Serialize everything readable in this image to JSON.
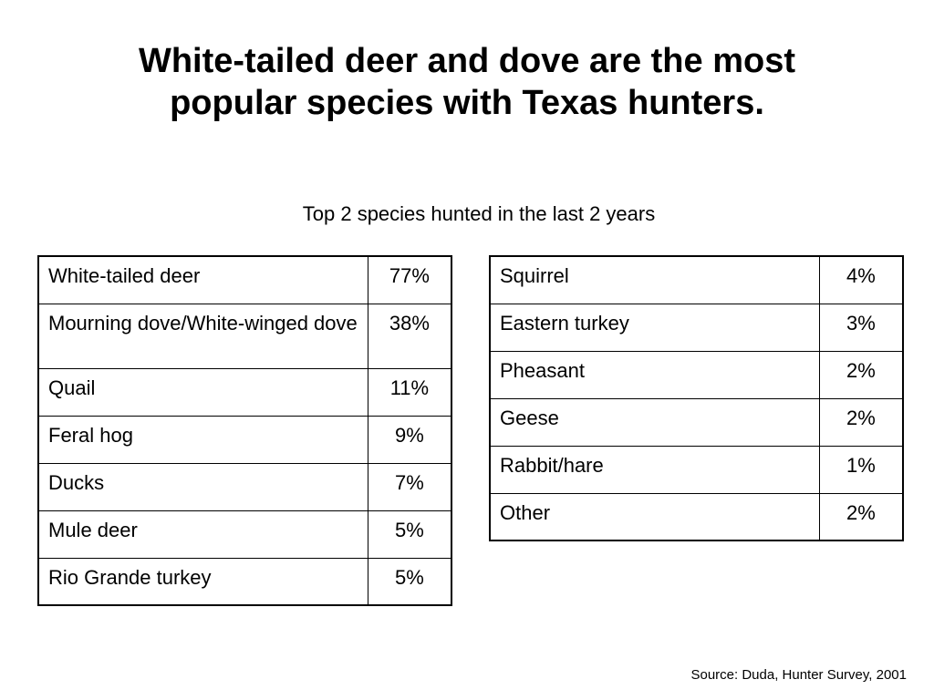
{
  "title": {
    "line1": "White-tailed deer and dove are the most",
    "line2": "popular species with Texas hunters."
  },
  "subtitle": "Top 2 species hunted in the last 2 years",
  "tables": {
    "left": [
      {
        "species": "White-tailed deer",
        "percent": "77%"
      },
      {
        "species": "Mourning dove/White-winged dove",
        "percent": "38%"
      },
      {
        "species": "Quail",
        "percent": "11%"
      },
      {
        "species": "Feral hog",
        "percent": "9%"
      },
      {
        "species": "Ducks",
        "percent": "7%"
      },
      {
        "species": "Mule deer",
        "percent": "5%"
      },
      {
        "species": "Rio Grande turkey",
        "percent": "5%"
      }
    ],
    "right": [
      {
        "species": "Squirrel",
        "percent": "4%"
      },
      {
        "species": "Eastern turkey",
        "percent": "3%"
      },
      {
        "species": "Pheasant",
        "percent": "2%"
      },
      {
        "species": "Geese",
        "percent": "2%"
      },
      {
        "species": "Rabbit/hare",
        "percent": "1%"
      },
      {
        "species": "Other",
        "percent": "2%"
      }
    ]
  },
  "source": "Source: Duda, Hunter Survey, 2001"
}
